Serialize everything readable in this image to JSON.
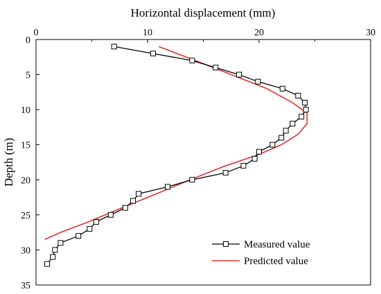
{
  "chart_data": {
    "type": "line",
    "xlabel": "Horizontal displacement (mm)",
    "ylabel": "Depth (m)",
    "x_axis_position": "top",
    "y_axis_inverted": true,
    "xlim": [
      0,
      30
    ],
    "ylim": [
      0,
      35
    ],
    "x_ticks": [
      "0",
      "10",
      "20",
      "30"
    ],
    "y_ticks": [
      "0",
      "5",
      "10",
      "15",
      "20",
      "25",
      "30",
      "35"
    ],
    "grid": false,
    "legend_position": "bottom-right",
    "series": [
      {
        "name": "Measured value",
        "color": "#000000",
        "marker": "open-square",
        "points": [
          [
            7.0,
            1
          ],
          [
            10.5,
            2
          ],
          [
            14.0,
            3
          ],
          [
            16.1,
            4
          ],
          [
            18.2,
            5
          ],
          [
            19.9,
            6
          ],
          [
            22.1,
            7
          ],
          [
            23.5,
            8
          ],
          [
            24.1,
            9
          ],
          [
            24.2,
            10
          ],
          [
            23.8,
            11
          ],
          [
            23.0,
            12
          ],
          [
            22.4,
            13
          ],
          [
            22.0,
            14
          ],
          [
            21.2,
            15
          ],
          [
            20.0,
            16
          ],
          [
            19.6,
            17
          ],
          [
            18.6,
            18
          ],
          [
            17.0,
            19
          ],
          [
            14.0,
            20
          ],
          [
            11.8,
            21
          ],
          [
            9.2,
            22
          ],
          [
            8.7,
            23
          ],
          [
            8.0,
            24
          ],
          [
            6.7,
            25
          ],
          [
            5.4,
            26
          ],
          [
            4.8,
            27
          ],
          [
            3.8,
            28
          ],
          [
            2.2,
            29
          ],
          [
            1.7,
            30
          ],
          [
            1.5,
            31
          ],
          [
            1.0,
            32
          ]
        ]
      },
      {
        "name": "Predicted value",
        "color": "#e03030",
        "marker": "none",
        "points": [
          [
            11.0,
            1
          ],
          [
            14.3,
            3
          ],
          [
            17.5,
            5
          ],
          [
            20.7,
            7
          ],
          [
            23.0,
            9
          ],
          [
            24.3,
            10.5
          ],
          [
            24.3,
            12
          ],
          [
            23.5,
            13.5
          ],
          [
            22.0,
            15
          ],
          [
            19.8,
            16.5
          ],
          [
            17.0,
            18
          ],
          [
            13.8,
            20
          ],
          [
            10.8,
            22
          ],
          [
            7.7,
            24
          ],
          [
            4.7,
            26
          ],
          [
            2.2,
            27.5
          ],
          [
            0.8,
            28.5
          ]
        ]
      }
    ]
  }
}
